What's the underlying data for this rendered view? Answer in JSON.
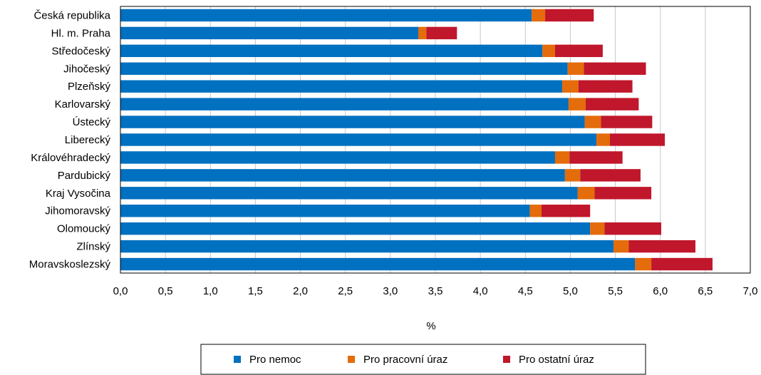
{
  "chart_data": {
    "type": "bar",
    "orientation": "horizontal",
    "stacked": true,
    "categories": [
      "Česká republika",
      "Hl. m. Praha",
      "Středočeský",
      "Jihočeský",
      "Plzeňský",
      "Karlovarský",
      "Ústecký",
      "Liberecký",
      "Královéhradecký",
      "Pardubický",
      "Kraj Vysočina",
      "Jihomoravský",
      "Olomoucký",
      "Zlínský",
      "Moravskoslezský"
    ],
    "series": [
      {
        "name": "Pro nemoc",
        "color": "#0070C0",
        "values": [
          4.57,
          3.31,
          4.69,
          4.97,
          4.91,
          4.98,
          5.16,
          5.29,
          4.83,
          4.94,
          5.08,
          4.55,
          5.22,
          5.48,
          5.72
        ]
      },
      {
        "name": "Pro pracovní úraz",
        "color": "#E46C0A",
        "values": [
          0.15,
          0.09,
          0.14,
          0.18,
          0.18,
          0.19,
          0.18,
          0.15,
          0.16,
          0.17,
          0.19,
          0.13,
          0.16,
          0.17,
          0.18
        ]
      },
      {
        "name": "Pro ostatní úraz",
        "color": "#C0172C",
        "values": [
          0.54,
          0.34,
          0.53,
          0.69,
          0.6,
          0.59,
          0.57,
          0.61,
          0.59,
          0.67,
          0.63,
          0.54,
          0.63,
          0.74,
          0.68
        ]
      }
    ],
    "xlabel": "%",
    "xlim": [
      0,
      7
    ],
    "xticks": [
      "0,0",
      "0,5",
      "1,0",
      "1,5",
      "2,0",
      "2,5",
      "3,0",
      "3,5",
      "4,0",
      "4,5",
      "5,0",
      "5,5",
      "6,0",
      "6,5",
      "7,0"
    ],
    "grid": true,
    "legend_position": "bottom"
  }
}
